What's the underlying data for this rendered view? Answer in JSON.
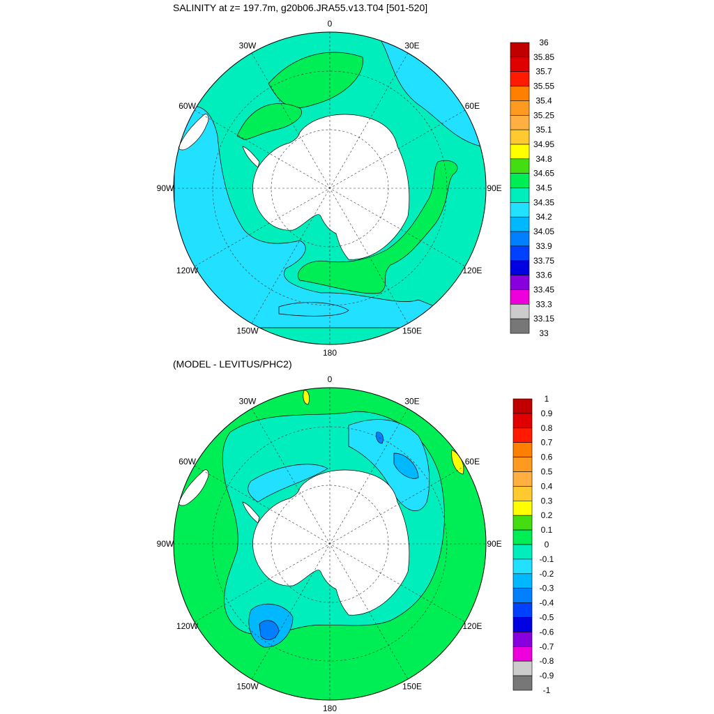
{
  "chart_data": [
    {
      "type": "heatmap",
      "projection": "south polar stereographic",
      "title": "SALINITY at z= 197.7m, g20b06.JRA55.v13.T04 [501-520]",
      "longitude_labels": [
        "0",
        "30E",
        "60E",
        "90E",
        "120E",
        "150E",
        "180",
        "150W",
        "120W",
        "90W",
        "60W",
        "30W"
      ],
      "colorbar": {
        "labels": [
          "36",
          "35.85",
          "35.7",
          "35.55",
          "35.4",
          "35.25",
          "35.1",
          "34.95",
          "34.8",
          "34.65",
          "34.5",
          "34.35",
          "34.2",
          "34.05",
          "33.9",
          "33.75",
          "33.6",
          "33.45",
          "33.3",
          "33.15",
          "33"
        ],
        "colors": [
          "#c00000",
          "#e00000",
          "#ff1a00",
          "#ff8000",
          "#ff9a20",
          "#ffb040",
          "#ffca30",
          "#ffff00",
          "#44dd11",
          "#00ee55",
          "#00eebb",
          "#22e0ff",
          "#00b8ff",
          "#0080ff",
          "#0040ff",
          "#0000e0",
          "#8800dd",
          "#ee00dd",
          "#cccccc",
          "#777777"
        ]
      },
      "field_description_regions": [
        {
          "value_range": "34.2-34.35",
          "where": "outer ring, 90W-180 sector"
        },
        {
          "value_range": "34.35-34.5",
          "where": "most of the circumpolar band"
        },
        {
          "value_range": "34.5-34.65",
          "where": "band near Antarctic coast, Weddell and 90E-150E"
        }
      ]
    },
    {
      "type": "heatmap",
      "projection": "south polar stereographic",
      "title": "(MODEL - LEVITUS/PHC2)",
      "longitude_labels": [
        "0",
        "30E",
        "60E",
        "90E",
        "120E",
        "150E",
        "180",
        "150W",
        "120W",
        "90W",
        "60W",
        "30W"
      ],
      "colorbar": {
        "labels": [
          "1",
          "0.9",
          "0.8",
          "0.7",
          "0.6",
          "0.5",
          "0.4",
          "0.3",
          "0.2",
          "0.1",
          "0",
          "-0.1",
          "-0.2",
          "-0.3",
          "-0.4",
          "-0.5",
          "-0.6",
          "-0.7",
          "-0.8",
          "-0.9",
          "-1"
        ],
        "colors": [
          "#c00000",
          "#e00000",
          "#ff1a00",
          "#ff8000",
          "#ff9a20",
          "#ffb040",
          "#ffca30",
          "#ffff00",
          "#44dd11",
          "#00ee55",
          "#00eebb",
          "#22e0ff",
          "#00b8ff",
          "#0080ff",
          "#0040ff",
          "#0000e0",
          "#8800dd",
          "#ee00dd",
          "#cccccc",
          "#777777"
        ]
      }
    }
  ]
}
